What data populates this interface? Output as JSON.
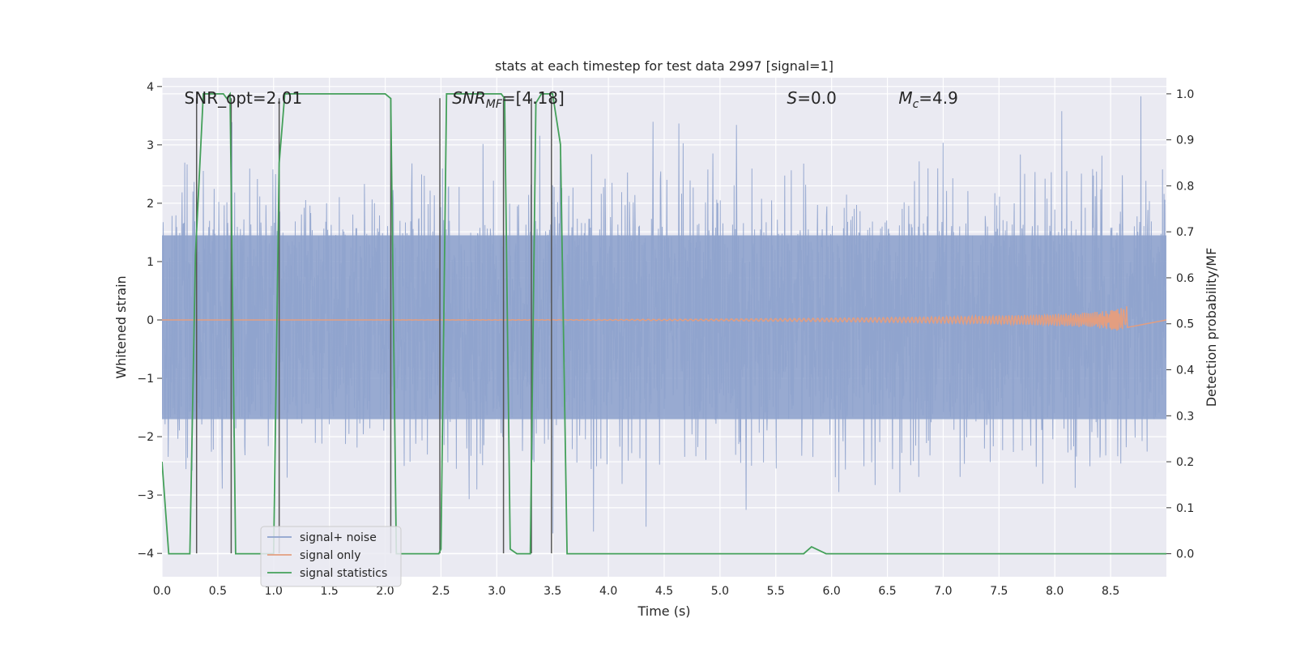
{
  "chart_data": {
    "type": "line",
    "title": "stats at each timestep for test data 2997 [signal=1]",
    "xlabel": "Time (s)",
    "ylabel": "Whitened strain",
    "ylabel_right": "Detection probability/MF",
    "xlim": [
      0.0,
      9.0
    ],
    "ylim": [
      -4.4,
      4.15
    ],
    "ylim_right": [
      -0.05,
      1.035
    ],
    "x_ticks": [
      0.0,
      0.5,
      1.0,
      1.5,
      2.0,
      2.5,
      3.0,
      3.5,
      4.0,
      4.5,
      5.0,
      5.5,
      6.0,
      6.5,
      7.0,
      7.5,
      8.0,
      8.5
    ],
    "x_tick_labels": [
      "0.0",
      "0.5",
      "1.0",
      "1.5",
      "2.0",
      "2.5",
      "3.0",
      "3.5",
      "4.0",
      "4.5",
      "5.0",
      "5.5",
      "6.0",
      "6.5",
      "7.0",
      "7.5",
      "8.0",
      "8.5"
    ],
    "y_ticks": [
      -4,
      -3,
      -2,
      -1,
      0,
      1,
      2,
      3,
      4
    ],
    "y_tick_labels": [
      "−4",
      "−3",
      "−2",
      "−1",
      "0",
      "1",
      "2",
      "3",
      "4"
    ],
    "y_ticks_right": [
      0.0,
      0.1,
      0.2,
      0.3,
      0.4,
      0.5,
      0.6,
      0.7,
      0.8,
      0.9,
      1.0
    ],
    "y_tick_labels_right": [
      "0.0",
      "0.1",
      "0.2",
      "0.3",
      "0.4",
      "0.5",
      "0.6",
      "0.7",
      "0.8",
      "0.9",
      "1.0"
    ],
    "grid": true,
    "legend_position": "lower-left",
    "annotations": [
      {
        "text": "SNR_opt=2.01",
        "x": 0.2,
        "y": 3.8
      },
      {
        "text": "SNR_MF=[4.18]",
        "x": 2.6,
        "y": 3.8
      },
      {
        "text": "S=0.0",
        "x": 5.6,
        "y": 3.8
      },
      {
        "text": "M_c=4.9",
        "x": 6.6,
        "y": 3.8
      }
    ],
    "series": [
      {
        "name": "signal+ noise",
        "color": "#8fa3cd",
        "kind": "noise",
        "amplitude_core": 1.7,
        "amplitude_peak_typical": 2.6,
        "amplitude_peak_max": 3.9
      },
      {
        "name": "signal only",
        "color": "#e39e80",
        "kind": "chirp",
        "t_merge": 8.65,
        "peak_amplitude": 0.25
      },
      {
        "name": "signal statistics",
        "color": "#44a05a",
        "axis": "right",
        "x": [
          0.0,
          0.06,
          0.25,
          0.3,
          0.37,
          0.55,
          0.58,
          0.61,
          0.66,
          1.0,
          1.05,
          1.1,
          1.15,
          2.0,
          2.05,
          2.1,
          2.15,
          2.48,
          2.5,
          2.55,
          3.04,
          3.07,
          3.12,
          3.18,
          3.3,
          3.35,
          3.4,
          3.5,
          3.57,
          3.63,
          3.7,
          5.75,
          5.82,
          5.95,
          9.0
        ],
        "values": [
          0.2,
          0.0,
          0.0,
          0.65,
          1.0,
          1.0,
          0.99,
          1.0,
          0.0,
          0.0,
          0.85,
          1.0,
          1.0,
          1.0,
          0.99,
          0.0,
          0.0,
          0.0,
          0.01,
          1.0,
          1.0,
          0.99,
          0.01,
          0.0,
          0.0,
          0.98,
          1.0,
          1.0,
          0.89,
          0.0,
          0.0,
          0.0,
          0.015,
          0.0,
          0.0
        ]
      }
    ],
    "vlines": [
      {
        "x": 0.31,
        "ymin": -4.0,
        "ymax": 3.8
      },
      {
        "x": 0.62,
        "ymin": -4.0,
        "ymax": 3.8
      },
      {
        "x": 1.05,
        "ymin": -4.0,
        "ymax": 3.8
      },
      {
        "x": 2.05,
        "ymin": -4.0,
        "ymax": 3.8
      },
      {
        "x": 2.49,
        "ymin": -4.0,
        "ymax": 3.8
      },
      {
        "x": 3.06,
        "ymin": -4.0,
        "ymax": 3.8
      },
      {
        "x": 3.31,
        "ymin": -4.0,
        "ymax": 3.8
      },
      {
        "x": 3.49,
        "ymin": -4.0,
        "ymax": 3.8
      }
    ]
  }
}
